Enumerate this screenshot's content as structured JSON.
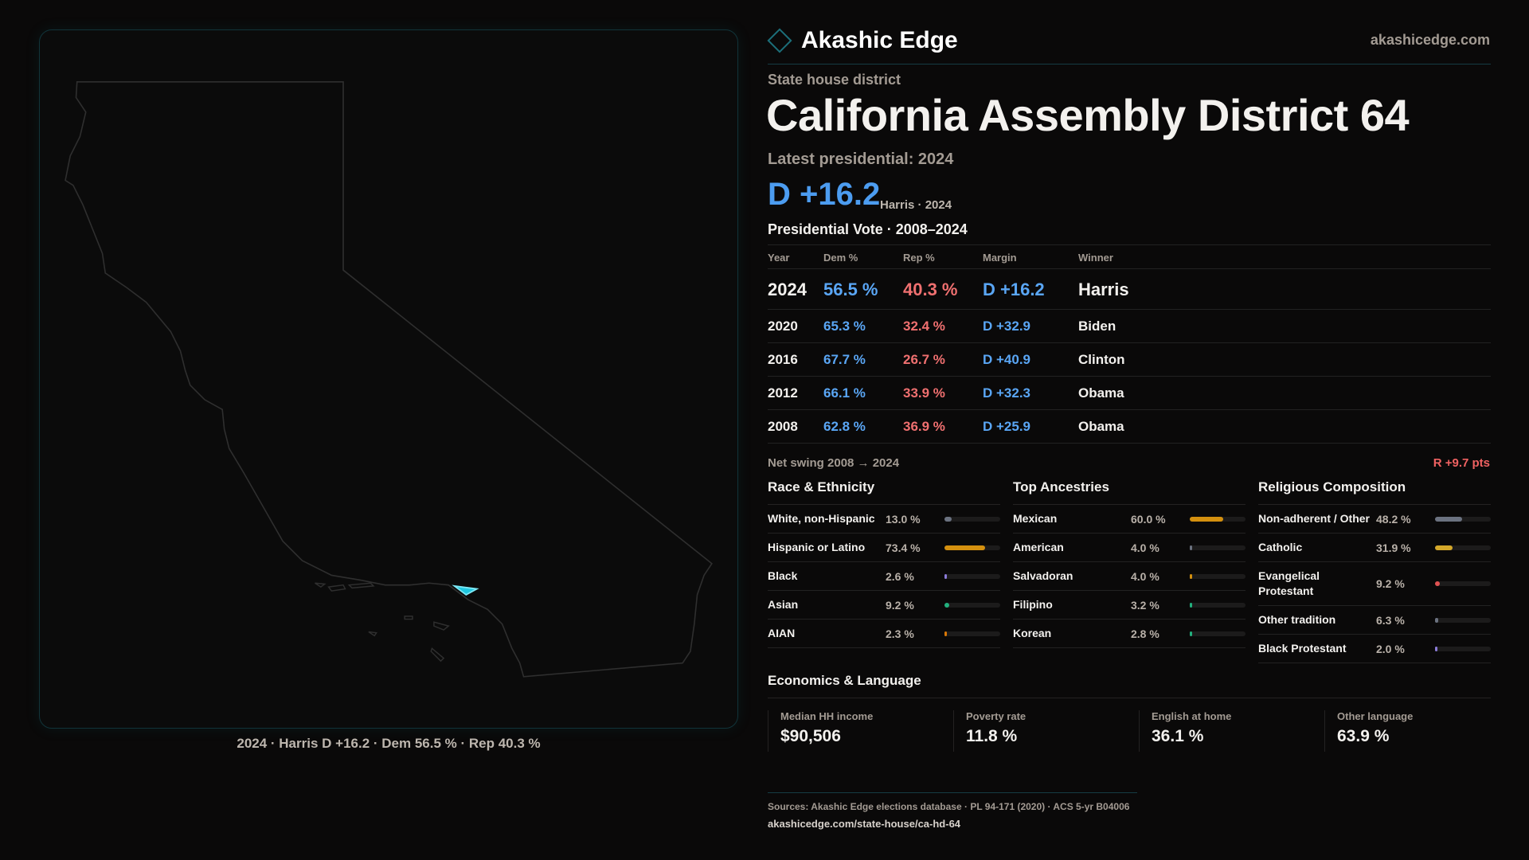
{
  "brand": {
    "name": "Akashic Edge",
    "site": "akashicedge.com"
  },
  "header": {
    "kind": "State house district",
    "title": "California Assembly District 64",
    "latest": "Latest presidential: 2024",
    "margin": "D +16.2",
    "margin_sub": "Harris · 2024"
  },
  "map": {
    "caption": "2024 · Harris D +16.2 · Dem 56.5 % · Rep 40.3 %",
    "district_color": "#1fc7e0"
  },
  "presidential": {
    "title": "Presidential Vote · 2008–2024",
    "columns": [
      "Year",
      "Dem %",
      "Rep %",
      "Margin",
      "Winner"
    ],
    "rows": [
      {
        "year": "2024",
        "dem": "56.5 %",
        "rep": "40.3 %",
        "margin": "D +16.2",
        "winner": "Harris"
      },
      {
        "year": "2020",
        "dem": "65.3 %",
        "rep": "32.4 %",
        "margin": "D +32.9",
        "winner": "Biden"
      },
      {
        "year": "2016",
        "dem": "67.7 %",
        "rep": "26.7 %",
        "margin": "D +40.9",
        "winner": "Clinton"
      },
      {
        "year": "2012",
        "dem": "66.1 %",
        "rep": "33.9 %",
        "margin": "D +32.3",
        "winner": "Obama"
      },
      {
        "year": "2008",
        "dem": "62.8 %",
        "rep": "36.9 %",
        "margin": "D +25.9",
        "winner": "Obama"
      }
    ],
    "swing_label": "Net swing 2008 → 2024",
    "swing_value": "R +9.7 pts"
  },
  "sections": [
    {
      "title": "Race & Ethnicity",
      "items": [
        {
          "label": "White, non-Hispanic",
          "value": "13.0 %",
          "pct": 13.0,
          "color": "#6b7280"
        },
        {
          "label": "Hispanic or Latino",
          "value": "73.4 %",
          "pct": 73.4,
          "color": "#d4900f"
        },
        {
          "label": "Black",
          "value": "2.6 %",
          "pct": 2.6,
          "color": "#8b7bd8"
        },
        {
          "label": "Asian",
          "value": "9.2 %",
          "pct": 9.2,
          "color": "#22b07d"
        },
        {
          "label": "AIAN",
          "value": "2.3 %",
          "pct": 2.3,
          "color": "#d97706"
        }
      ]
    },
    {
      "title": "Top Ancestries",
      "items": [
        {
          "label": "Mexican",
          "value": "60.0 %",
          "pct": 60.0,
          "color": "#d4900f"
        },
        {
          "label": "American",
          "value": "4.0 %",
          "pct": 4.0,
          "color": "#6b7280"
        },
        {
          "label": "Salvadoran",
          "value": "4.0 %",
          "pct": 4.0,
          "color": "#d4900f"
        },
        {
          "label": "Filipino",
          "value": "3.2 %",
          "pct": 3.2,
          "color": "#22b07d"
        },
        {
          "label": "Korean",
          "value": "2.8 %",
          "pct": 2.8,
          "color": "#22b07d"
        }
      ]
    },
    {
      "title": "Religious Composition",
      "items": [
        {
          "label": "Non-adherent / Other",
          "value": "48.2 %",
          "pct": 48.2,
          "color": "#6b7280"
        },
        {
          "label": "Catholic",
          "value": "31.9 %",
          "pct": 31.9,
          "color": "#d4a82a"
        },
        {
          "label": "Evangelical Protestant",
          "value": "9.2 %",
          "pct": 9.2,
          "color": "#e05252"
        },
        {
          "label": "Other tradition",
          "value": "6.3 %",
          "pct": 6.3,
          "color": "#6b7280"
        },
        {
          "label": "Black Protestant",
          "value": "2.0 %",
          "pct": 2.0,
          "color": "#8b7bd8"
        }
      ]
    }
  ],
  "economics": {
    "title": "Economics & Language",
    "cards": [
      {
        "label": "Median HH income",
        "value": "$90,506"
      },
      {
        "label": "Poverty rate",
        "value": "11.8 %"
      },
      {
        "label": "English at home",
        "value": "36.1 %"
      },
      {
        "label": "Other language",
        "value": "63.9 %"
      }
    ]
  },
  "footer": {
    "sources": "Sources: Akashic Edge elections database · PL 94-171 (2020) · ACS 5-yr B04006",
    "url": "akashicedge.com/state-house/ca-hd-64"
  }
}
